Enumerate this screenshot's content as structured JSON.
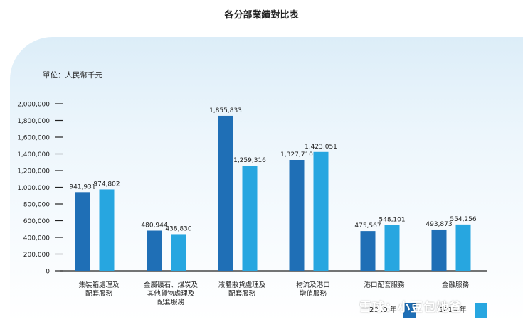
{
  "title": "各分部業績對比表",
  "unit_label": "單位：人民幣千元",
  "watermark": "雪球：小豆包她爸",
  "colors": {
    "series_2020": "#1f6fb6",
    "series_2019": "#27a6e0"
  },
  "chart_data": {
    "type": "bar",
    "title": "各分部業績對比表",
    "ylabel": "單位：人民幣千元",
    "ylim": [
      0,
      2000000
    ],
    "yticks": [
      0,
      200000,
      400000,
      600000,
      800000,
      1000000,
      1200000,
      1400000,
      1600000,
      1800000,
      2000000
    ],
    "ytick_labels": [
      "0",
      "200,000",
      "400,000",
      "600,000",
      "800,000",
      "1,000,000",
      "1,200,000",
      "1,400,000",
      "1,600,000",
      "1,800,000",
      "2,000,000"
    ],
    "categories": [
      [
        "集裝箱處理及",
        "配套服務"
      ],
      [
        "金屬礦石、煤炭及",
        "其他貨物處理及",
        "配套服務"
      ],
      [
        "液體散貨處理及",
        "配套服務"
      ],
      [
        "物流及港口",
        "增值服務"
      ],
      [
        "港口配套服務"
      ],
      [
        "金融服務"
      ]
    ],
    "series": [
      {
        "name": "2020 年",
        "values": [
          941931,
          480944,
          1855833,
          1327710,
          475567,
          493873
        ],
        "labels": [
          "941,931",
          "480,944",
          "1,855,833",
          "1,327,710",
          "475,567",
          "493,873"
        ]
      },
      {
        "name": "2019 年",
        "values": [
          974802,
          438830,
          1259316,
          1423051,
          548101,
          554256
        ],
        "labels": [
          "974,802",
          "438,830",
          "1,259,316",
          "1,423,051",
          "548,101",
          "554,256"
        ]
      }
    ],
    "grid": false,
    "legend_position": "bottom-right"
  }
}
